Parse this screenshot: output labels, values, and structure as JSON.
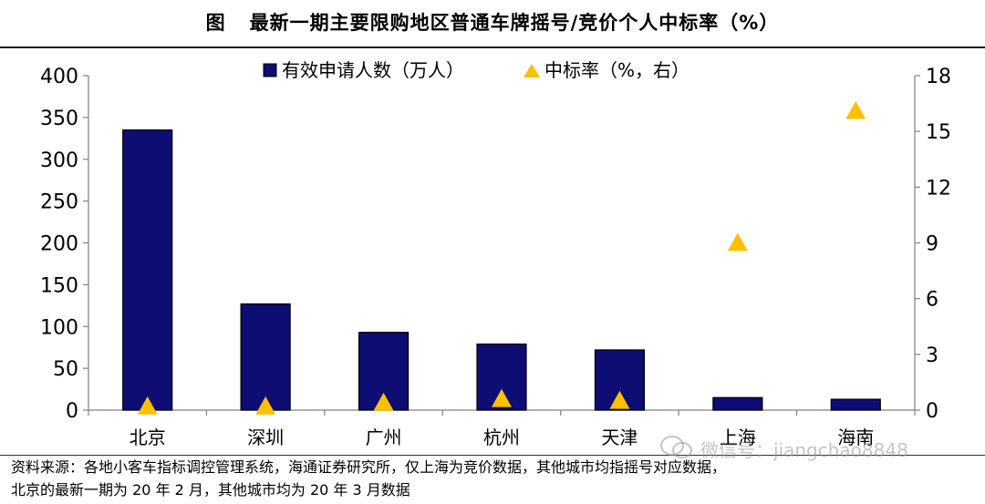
{
  "title": {
    "fig_no": "图",
    "text": "最新一期主要限购地区普通车牌摇号/竞价个人中标率（%）"
  },
  "chart_data": {
    "type": "bar",
    "categories": [
      "北京",
      "深圳",
      "广州",
      "杭州",
      "天津",
      "上海",
      "海南"
    ],
    "series": [
      {
        "name": "有效申请人数（万人）",
        "type": "bar",
        "axis": "left",
        "values": [
          335,
          127,
          93,
          79,
          72,
          15,
          13
        ]
      },
      {
        "name": "中标率（%，右）",
        "type": "scatter",
        "axis": "right",
        "values": [
          0.2,
          0.2,
          0.4,
          0.6,
          0.5,
          9.0,
          16.1
        ]
      }
    ],
    "y_left": {
      "min": 0,
      "max": 400,
      "ticks": [
        "0",
        "50",
        "100",
        "150",
        "200",
        "250",
        "300",
        "350",
        "400"
      ]
    },
    "y_right": {
      "min": 0,
      "max": 18,
      "ticks": [
        "0",
        "3",
        "6",
        "9",
        "12",
        "15",
        "18"
      ]
    },
    "legend_position": "top-center",
    "grid": false,
    "colors": {
      "bar": "#0d0d73",
      "marker": "#ffc000"
    }
  },
  "source": {
    "line1": "资料来源：各地小客车指标调控管理系统，海通证券研究所，仅上海为竞价数据，其他城市均指摇号对应数据，",
    "line2": "北京的最新一期为 20 年 2 月，其他城市均为 20 年 3 月数据"
  },
  "watermark": {
    "text": "微信号：jiangchao8848",
    "icon": "wechat-icon"
  }
}
